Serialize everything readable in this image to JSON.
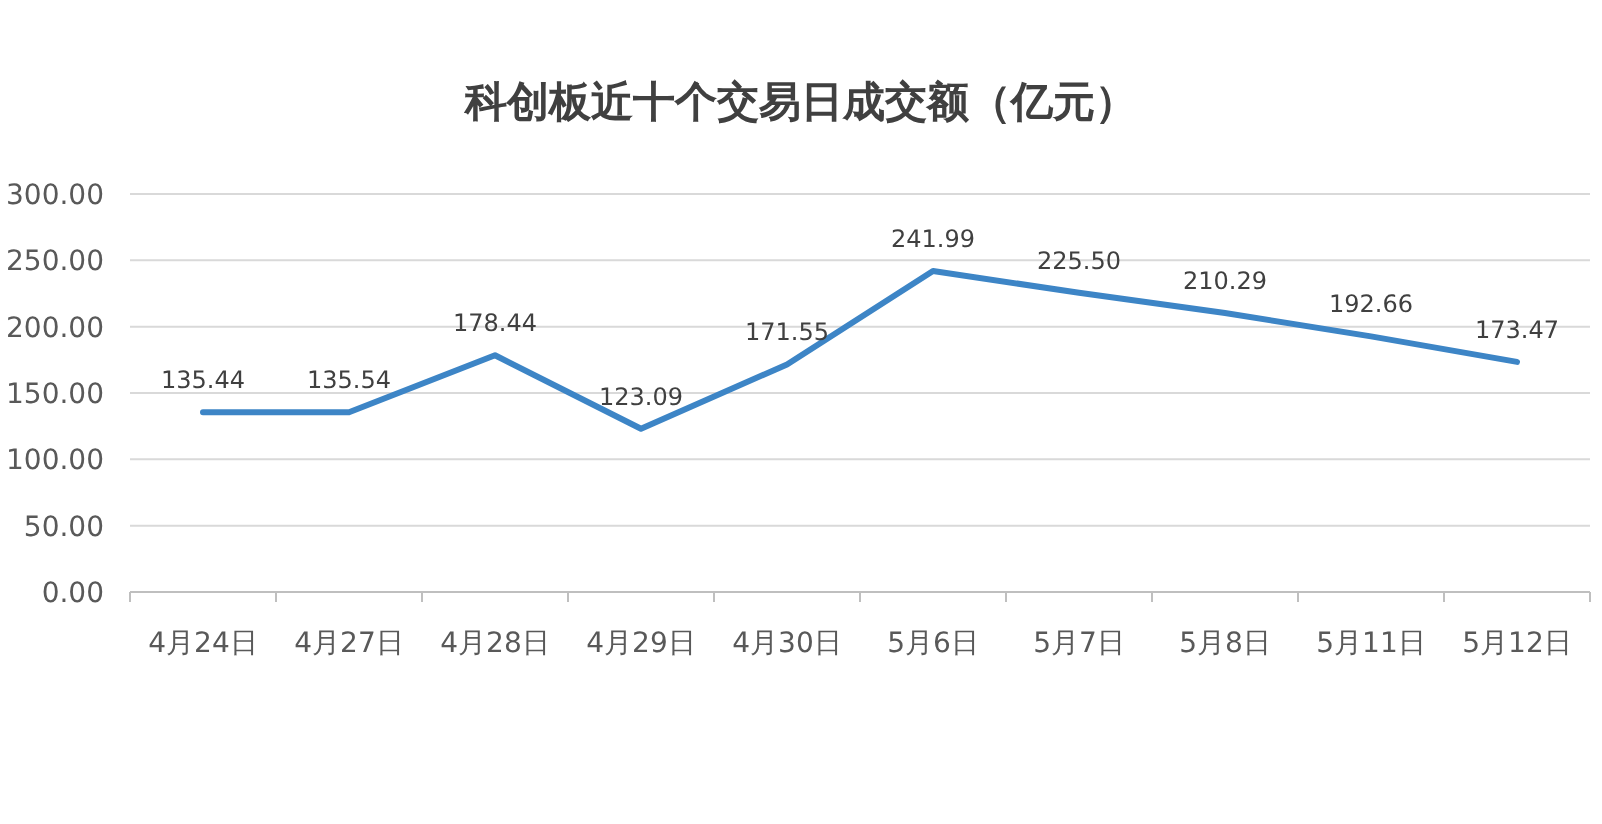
{
  "chart_data": {
    "type": "line",
    "title": "科创板近十个交易日成交额（亿元）",
    "categories": [
      "4月24日",
      "4月27日",
      "4月28日",
      "4月29日",
      "4月30日",
      "5月6日",
      "5月7日",
      "5月8日",
      "5月11日",
      "5月12日"
    ],
    "series": [
      {
        "color": "#3d85c6",
        "values": [
          135.44,
          135.54,
          178.44,
          123.09,
          171.55,
          241.99,
          225.5,
          210.29,
          192.66,
          173.47
        ],
        "value_labels": [
          "135.44",
          "135.54",
          "178.44",
          "123.09",
          "171.55",
          "241.99",
          "225.50",
          "210.29",
          "192.66",
          "173.47"
        ]
      }
    ],
    "ylim": [
      0,
      300
    ],
    "yticks": [
      {
        "value": 0,
        "label": "0.00"
      },
      {
        "value": 50,
        "label": "50.00"
      },
      {
        "value": 100,
        "label": "100.00"
      },
      {
        "value": 150,
        "label": "150.00"
      },
      {
        "value": 200,
        "label": "200.00"
      },
      {
        "value": 250,
        "label": "250.00"
      },
      {
        "value": 300,
        "label": "300.00"
      }
    ],
    "grid": "y",
    "marker": "none",
    "line_style": "solid"
  }
}
